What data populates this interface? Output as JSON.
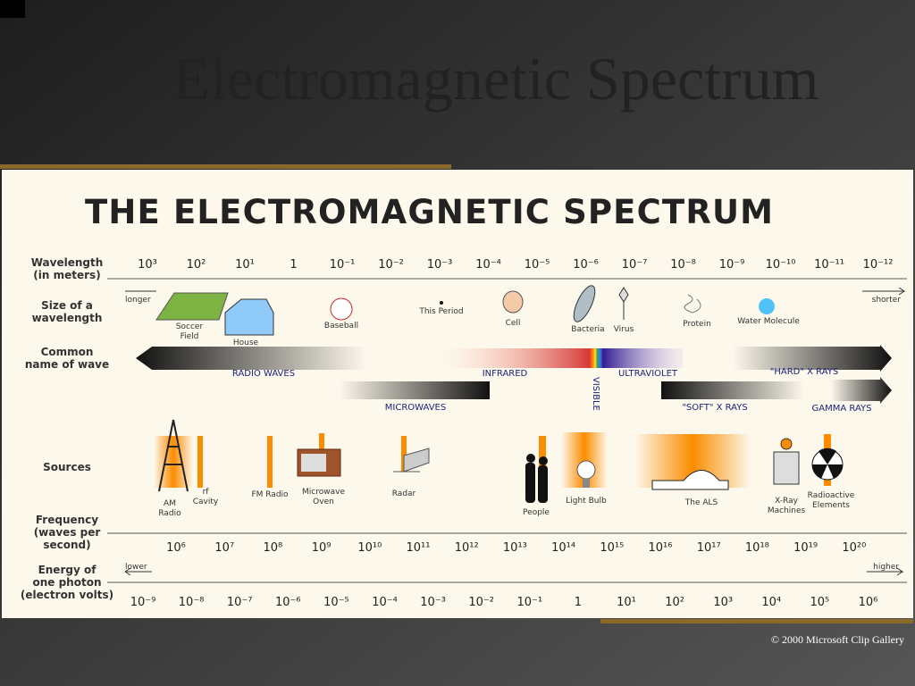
{
  "slide": {
    "title": "Electromagnetic Spectrum",
    "credit": "© 2000 Microsoft Clip Gallery"
  },
  "diagram": {
    "heading": "THE ELECTROMAGNETIC SPECTRUM",
    "row_labels": {
      "wavelength": [
        "Wavelength",
        "(in meters)"
      ],
      "size": [
        "Size of a",
        "wavelength"
      ],
      "name": [
        "Common",
        "name of wave"
      ],
      "sources": [
        "Sources"
      ],
      "frequency": [
        "Frequency",
        "(waves per",
        "second)"
      ],
      "energy": [
        "Energy of",
        "one photon",
        "(electron volts)"
      ]
    },
    "wavelength_ticks": [
      "10³",
      "10²",
      "10¹",
      "1",
      "10⁻¹",
      "10⁻²",
      "10⁻³",
      "10⁻⁴",
      "10⁻⁵",
      "10⁻⁶",
      "10⁻⁷",
      "10⁻⁸",
      "10⁻⁹",
      "10⁻¹⁰",
      "10⁻¹¹",
      "10⁻¹²"
    ],
    "longer": "longer",
    "shorter": "shorter",
    "sizes": [
      [
        "Soccer",
        "Field"
      ],
      [
        "House"
      ],
      [
        "Baseball"
      ],
      [
        "This Period"
      ],
      [
        "Cell"
      ],
      [
        "Bacteria"
      ],
      [
        "Virus"
      ],
      [
        "Protein"
      ],
      [
        "Water Molecule"
      ]
    ],
    "waves": [
      "RADIO WAVES",
      "INFRARED",
      "VISIBLE",
      "ULTRAVIOLET",
      "\"HARD\" X RAYS",
      "MICROWAVES",
      "\"SOFT\" X RAYS",
      "GAMMA RAYS"
    ],
    "sources": [
      [
        "AM",
        "Radio"
      ],
      [
        "rf",
        "Cavity"
      ],
      [
        "FM Radio"
      ],
      [
        "Microwave",
        "Oven"
      ],
      [
        "Radar"
      ],
      [
        "People"
      ],
      [
        "Light Bulb"
      ],
      [
        "The ALS"
      ],
      [
        "X-Ray",
        "Machines"
      ],
      [
        "Radioactive",
        "Elements"
      ]
    ],
    "frequency_ticks": [
      "10⁶",
      "10⁷",
      "10⁸",
      "10⁹",
      "10¹⁰",
      "10¹¹",
      "10¹²",
      "10¹³",
      "10¹⁴",
      "10¹⁵",
      "10¹⁶",
      "10¹⁷",
      "10¹⁸",
      "10¹⁹",
      "10²⁰"
    ],
    "lower": "lower",
    "higher": "higher",
    "energy_ticks": [
      "10⁻⁹",
      "10⁻⁸",
      "10⁻⁷",
      "10⁻⁶",
      "10⁻⁵",
      "10⁻⁴",
      "10⁻³",
      "10⁻²",
      "10⁻¹",
      "1",
      "10¹",
      "10²",
      "10³",
      "10⁴",
      "10⁵",
      "10⁶"
    ]
  }
}
